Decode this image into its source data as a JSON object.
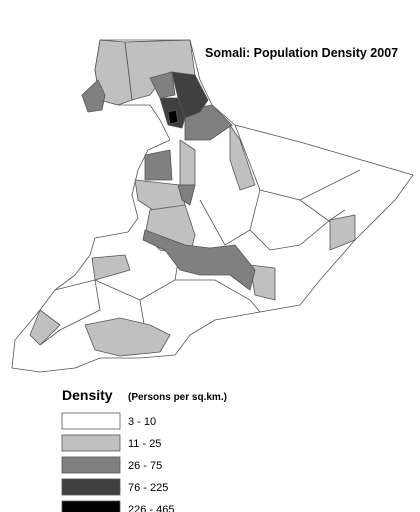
{
  "title": "Somali: Population Density 2007",
  "legend": {
    "title": "Density",
    "subtitle": "(Persons per sq.km.)",
    "classes": [
      {
        "label": "3 - 10",
        "color": "#ffffff"
      },
      {
        "label": "11 - 25",
        "color": "#c0c0c0"
      },
      {
        "label": "26 - 75",
        "color": "#808080"
      },
      {
        "label": "76 - 225",
        "color": "#404040"
      },
      {
        "label": "226 - 465",
        "color": "#000000"
      }
    ]
  }
}
